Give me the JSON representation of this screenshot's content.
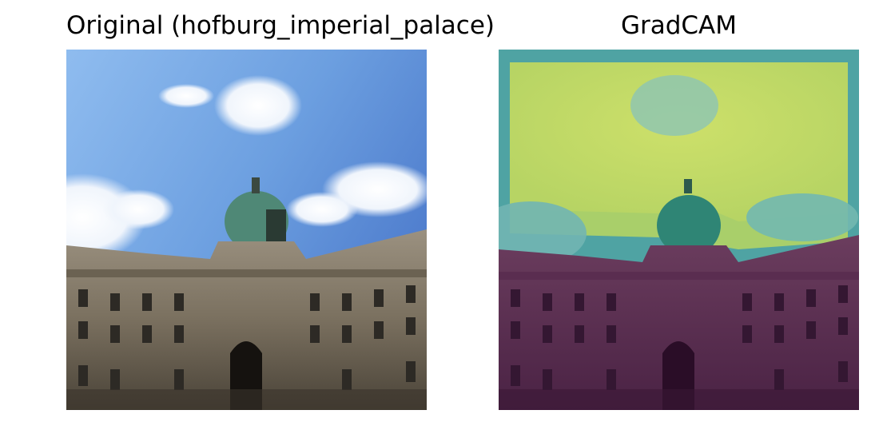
{
  "panels": [
    {
      "title": "Original (hofburg_imperial_palace)"
    },
    {
      "title": "GradCAM"
    }
  ]
}
